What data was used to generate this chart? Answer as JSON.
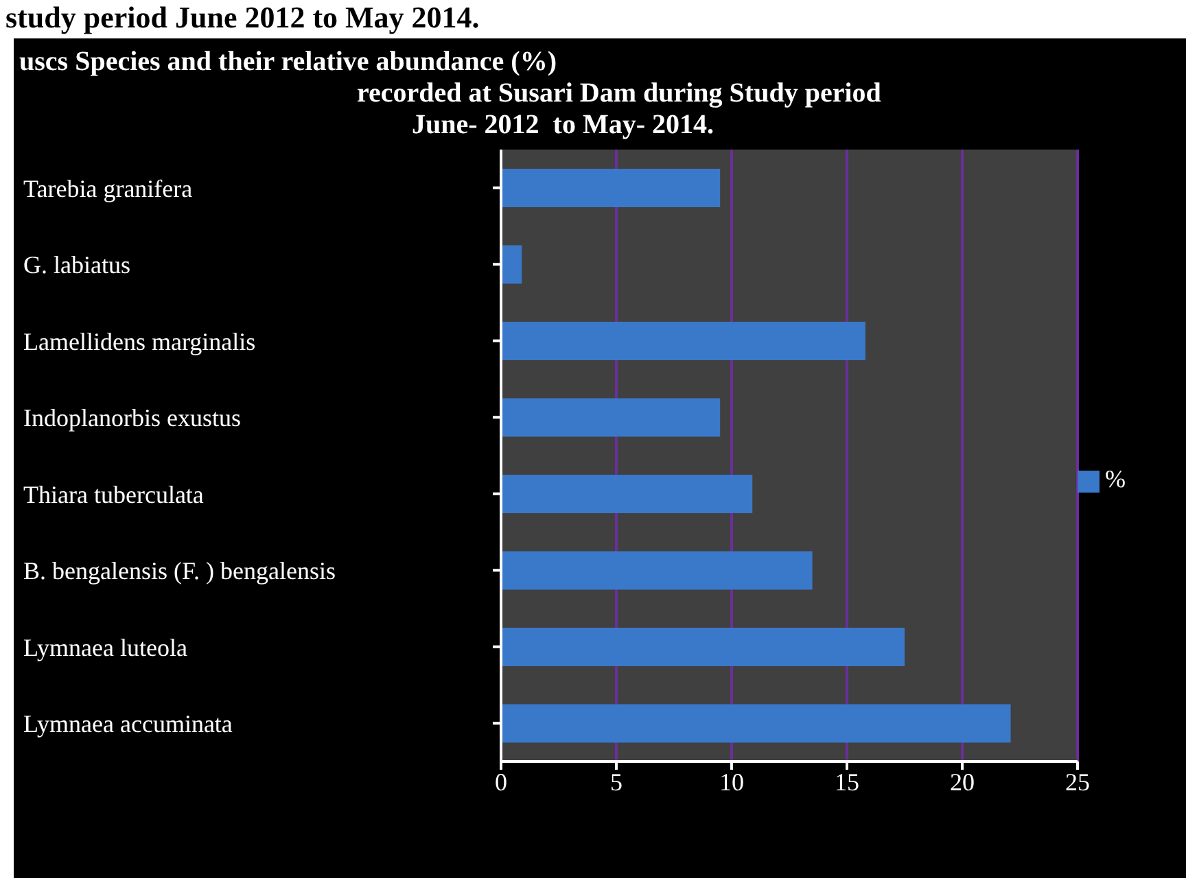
{
  "chart_data": {
    "type": "bar",
    "orientation": "horizontal",
    "title": "uscs Species and their relative abundance (%)",
    "subtitle": "recorded at Susari Dam during Study period\nJune- 2012  to May- 2014.",
    "annotations": [
      "study period June 2012 to May 2014."
    ],
    "categories": [
      "Tarebia granifera",
      "G. labiatus",
      "Lamellidens marginalis",
      "Indoplanorbis exustus",
      "Thiara tuberculata",
      "B. bengalensis (F. ) bengalensis",
      "Lymnaea luteola",
      "Lymnaea  accuminata"
    ],
    "series": [
      {
        "name": "%",
        "color": "#3a78c9",
        "values": [
          9.5,
          0.9,
          15.8,
          9.5,
          10.9,
          13.5,
          17.5,
          22.1
        ]
      }
    ],
    "xlim": [
      0,
      25
    ],
    "xticks": [
      0,
      5,
      10,
      15,
      20,
      25
    ],
    "grid": "x",
    "legend": "right"
  }
}
